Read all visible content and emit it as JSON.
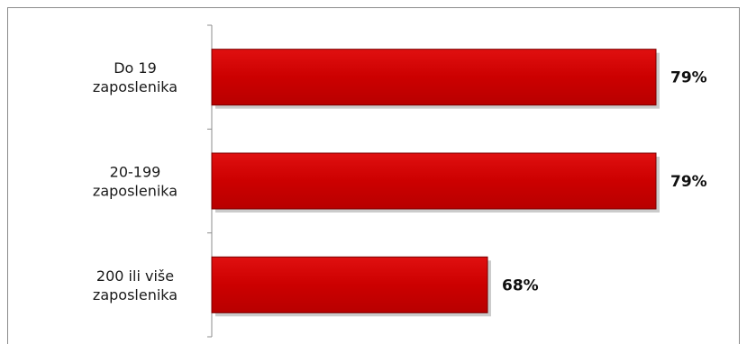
{
  "chart_data": {
    "type": "bar",
    "orientation": "horizontal",
    "categories": [
      [
        "Do 19",
        "zaposlenika"
      ],
      [
        "20-199",
        "zaposlenika"
      ],
      [
        "200 ili više",
        "zaposlenika"
      ]
    ],
    "values": [
      79,
      79,
      68
    ],
    "value_labels": [
      "79%",
      "79%",
      "68%"
    ],
    "title": "",
    "xlabel": "",
    "ylabel": "",
    "xlim": [
      50,
      80
    ],
    "grid": false,
    "legend": "none",
    "colors": {
      "bar": "#cc0000",
      "bar_edge": "#7a0000",
      "shadow": "#b5b5b5"
    }
  }
}
